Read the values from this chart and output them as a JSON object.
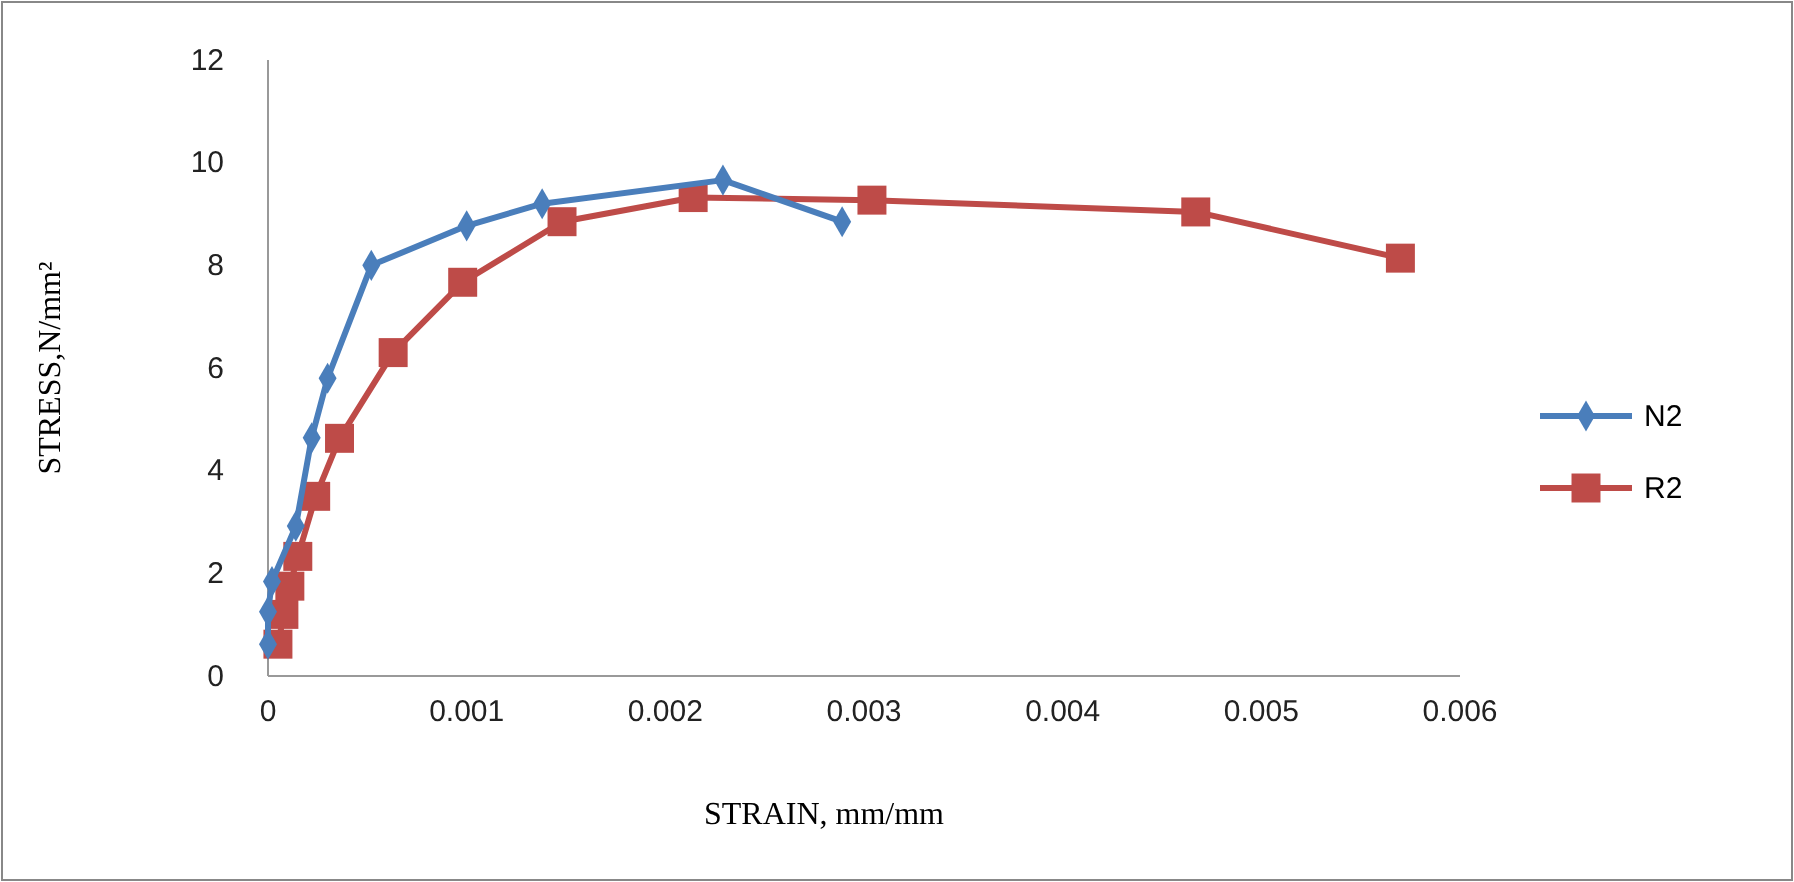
{
  "chart_data": {
    "type": "line",
    "xlabel": "STRAIN, mm/mm",
    "ylabel": "STRESS,N/mm²",
    "xlim": [
      0,
      0.006
    ],
    "xticks": [
      0,
      0.001,
      0.002,
      0.003,
      0.004,
      0.005,
      0.006
    ],
    "ylim": [
      0,
      12
    ],
    "yticks": [
      0,
      2,
      4,
      6,
      8,
      10,
      12
    ],
    "grid": false,
    "legend": "right",
    "line_style": "solid",
    "series": [
      {
        "name": "N2",
        "color": "#4a7ebb",
        "marker": "diamond",
        "x": [
          0,
          0,
          2e-05,
          0.00014,
          0.00022,
          0.0003,
          0.00052,
          0.001,
          0.00138,
          0.00229,
          0.00289
        ],
        "values": [
          0.62,
          1.25,
          1.84,
          2.92,
          4.64,
          5.8,
          8.0,
          8.77,
          9.2,
          9.66,
          8.85
        ]
      },
      {
        "name": "R2",
        "color": "#be4b48",
        "marker": "square",
        "x": [
          5e-05,
          8e-05,
          0.00011,
          0.00015,
          0.00024,
          0.00036,
          0.00063,
          0.00098,
          0.00148,
          0.00214,
          0.00304,
          0.00467,
          0.0057
        ],
        "values": [
          0.62,
          1.2,
          1.75,
          2.33,
          3.5,
          4.63,
          6.3,
          7.67,
          8.85,
          9.32,
          9.27,
          9.04,
          8.14
        ]
      }
    ]
  }
}
